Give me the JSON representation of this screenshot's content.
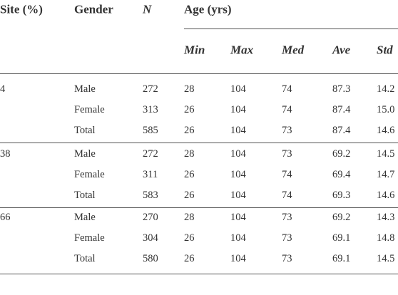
{
  "table": {
    "header": [
      "Site (%)",
      "Gender",
      "N",
      "Age (yrs)"
    ],
    "subheader": [
      "Min",
      "Max",
      "Med",
      "Ave",
      "Std"
    ],
    "groups": [
      {
        "site": "4",
        "rows": [
          [
            "Male",
            "272",
            "28",
            "104",
            "74",
            "87.3",
            "14.2"
          ],
          [
            "Female",
            "313",
            "26",
            "104",
            "74",
            "87.4",
            "15.0"
          ],
          [
            "Total",
            "585",
            "26",
            "104",
            "73",
            "87.4",
            "14.6"
          ]
        ]
      },
      {
        "site": "38",
        "rows": [
          [
            "Male",
            "272",
            "28",
            "104",
            "73",
            "69.2",
            "14.5"
          ],
          [
            "Female",
            "311",
            "26",
            "104",
            "74",
            "69.4",
            "14.7"
          ],
          [
            "Total",
            "583",
            "26",
            "104",
            "74",
            "69.3",
            "14.6"
          ]
        ]
      },
      {
        "site": "66",
        "rows": [
          [
            "Male",
            "270",
            "28",
            "104",
            "73",
            "69.2",
            "14.3"
          ],
          [
            "Female",
            "304",
            "26",
            "104",
            "73",
            "69.1",
            "14.8"
          ],
          [
            "Total",
            "580",
            "26",
            "104",
            "73",
            "69.1",
            "14.5"
          ]
        ]
      }
    ]
  }
}
